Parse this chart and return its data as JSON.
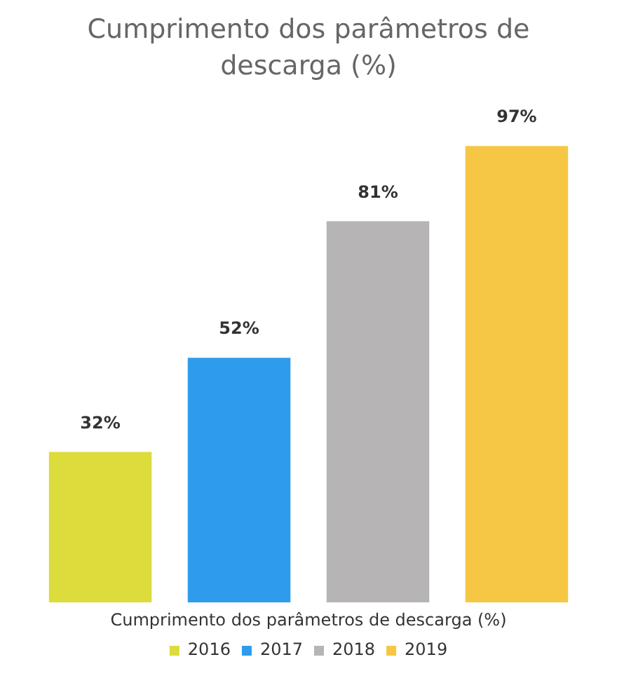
{
  "chart_data": {
    "type": "bar",
    "title": "Cumprimento dos parâmetros de descarga (%)",
    "xlabel": "Cumprimento dos parâmetros de descarga (%)",
    "categories": [
      null
    ],
    "legend": "bottom",
    "grid": false,
    "series": [
      {
        "name": "2016",
        "color": "#dcdc3c",
        "values": [
          32
        ],
        "value_labels": [
          "32%"
        ]
      },
      {
        "name": "2017",
        "color": "#2e9ceb",
        "values": [
          52
        ],
        "value_labels": [
          "52%"
        ]
      },
      {
        "name": "2018",
        "color": "#b6b4b4",
        "values": [
          81
        ],
        "value_labels": [
          "81%"
        ]
      },
      {
        "name": "2019",
        "color": "#f6c744",
        "values": [
          97
        ],
        "value_labels": [
          "97%"
        ]
      }
    ]
  }
}
